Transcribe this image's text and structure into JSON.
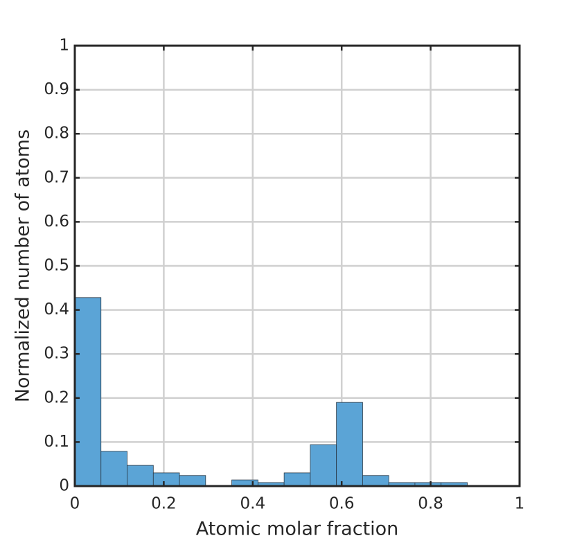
{
  "chart_data": {
    "type": "histogram",
    "xlabel": "Atomic molar fraction",
    "ylabel": "Normalized number of atoms",
    "bins": [
      0,
      0.0588,
      0.1176,
      0.1765,
      0.2353,
      0.2941,
      0.3529,
      0.4118,
      0.4706,
      0.5294,
      0.5882,
      0.6471,
      0.7059,
      0.7647,
      0.8235,
      0.8824,
      0.9412,
      1
    ],
    "counts": [
      0.428,
      0.079,
      0.047,
      0.03,
      0.024,
      0,
      0.014,
      0.008,
      0.03,
      0.094,
      0.19,
      0.024,
      0.008,
      0.008,
      0.008,
      0,
      0
    ],
    "color": "#5ba4d6",
    "xlim": [
      0,
      1
    ],
    "ylim": [
      0,
      1
    ],
    "xticks": [
      0,
      0.2,
      0.4,
      0.6,
      0.8,
      1
    ],
    "yticks": [
      0,
      0.1,
      0.2,
      0.3,
      0.4,
      0.5,
      0.6,
      0.7,
      0.8,
      0.9,
      1
    ],
    "grid": true
  }
}
